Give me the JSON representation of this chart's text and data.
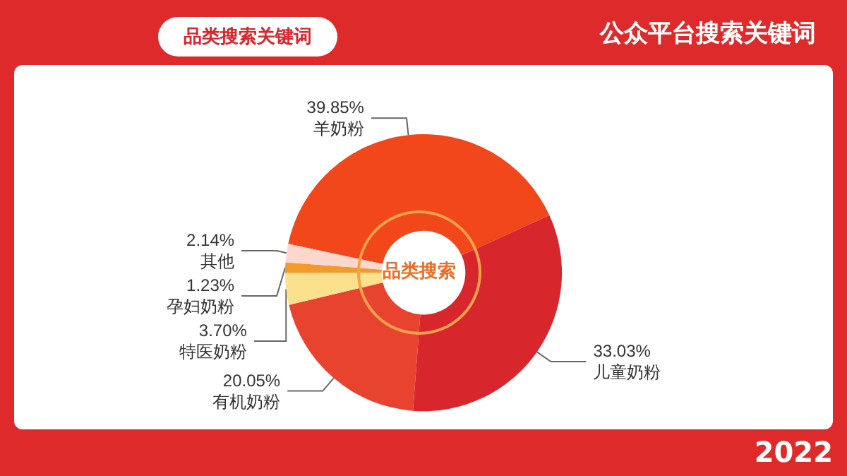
{
  "chart_data": {
    "type": "donut",
    "title": "公众平台搜索关键词",
    "subtitle": "品类搜索关键词",
    "categories": [
      "羊奶粉",
      "儿童奶粉",
      "有机奶粉",
      "特医奶粉",
      "孕妇奶粉",
      "其他"
    ],
    "values": [
      39.85,
      33.03,
      20.05,
      3.7,
      1.23,
      2.14
    ],
    "value_labels": [
      "39.85%",
      "33.03%",
      "20.05%",
      "3.70%",
      "1.23%",
      "2.14%"
    ],
    "colors": [
      "#f2461b",
      "#d7262c",
      "#e8432f",
      "#fbe08e",
      "#f39a2c",
      "#fbd8cb"
    ],
    "annotations": [
      "品类搜索",
      "2022"
    ],
    "legend": false
  }
}
